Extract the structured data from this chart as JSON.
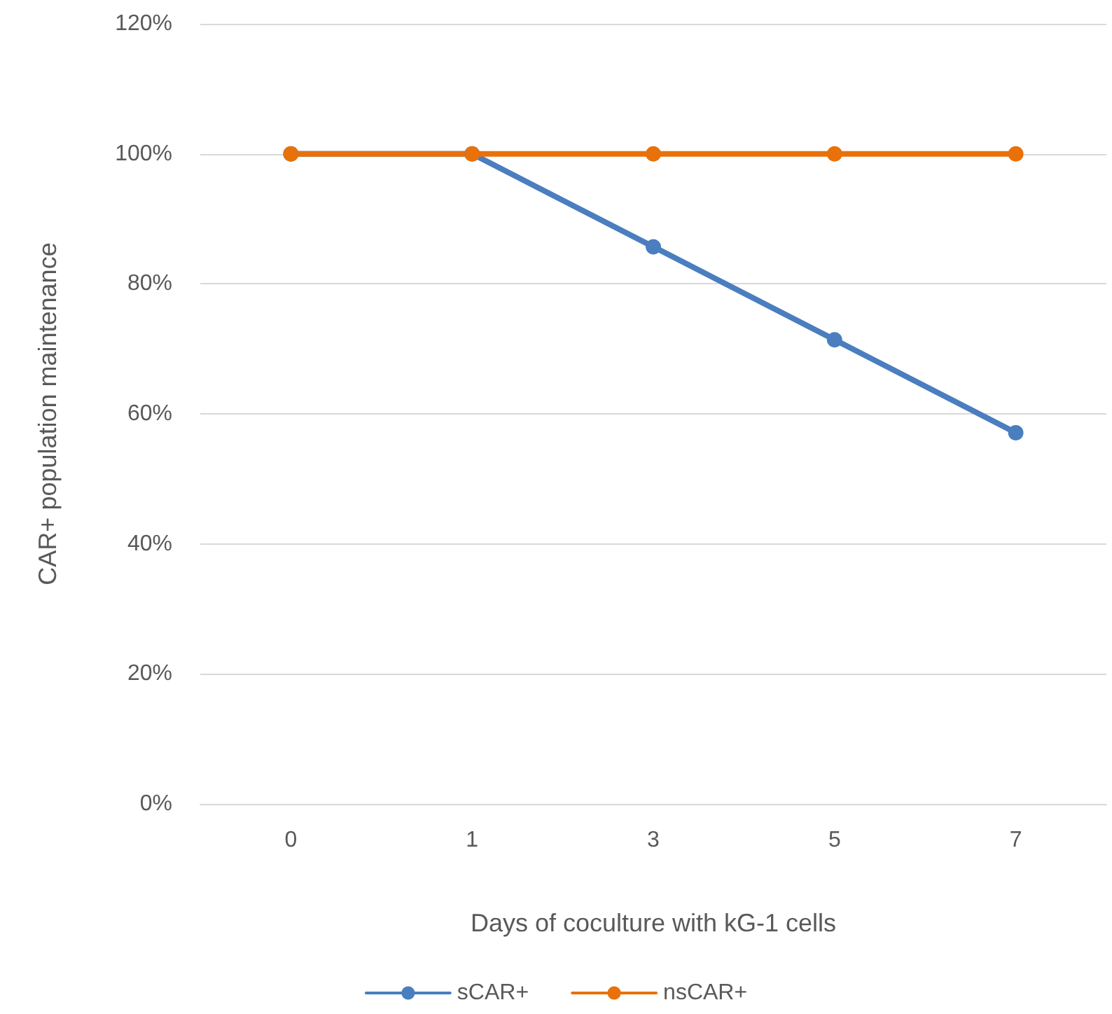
{
  "chart_data": {
    "type": "line",
    "xlabel": "Days of coculture with kG-1 cells",
    "ylabel": "CAR+ population maintenance",
    "categories": [
      "0",
      "1",
      "3",
      "5",
      "7"
    ],
    "series": [
      {
        "name": "sCAR+",
        "color": "#4a7ebf",
        "values": [
          100,
          100,
          85.7,
          71.4,
          57.1
        ]
      },
      {
        "name": "nsCAR+",
        "color": "#e8710a",
        "values": [
          100,
          100,
          100,
          100,
          100
        ]
      }
    ],
    "ylim": [
      0,
      120
    ],
    "yticks": [
      {
        "value": 0,
        "label": "0%"
      },
      {
        "value": 20,
        "label": "20%"
      },
      {
        "value": 40,
        "label": "40%"
      },
      {
        "value": 60,
        "label": "60%"
      },
      {
        "value": 80,
        "label": "80%"
      },
      {
        "value": 100,
        "label": "100%"
      },
      {
        "value": 120,
        "label": "120%"
      }
    ],
    "grid": "y",
    "legend": "bottom",
    "marker": "circle",
    "line_style": "solid"
  }
}
